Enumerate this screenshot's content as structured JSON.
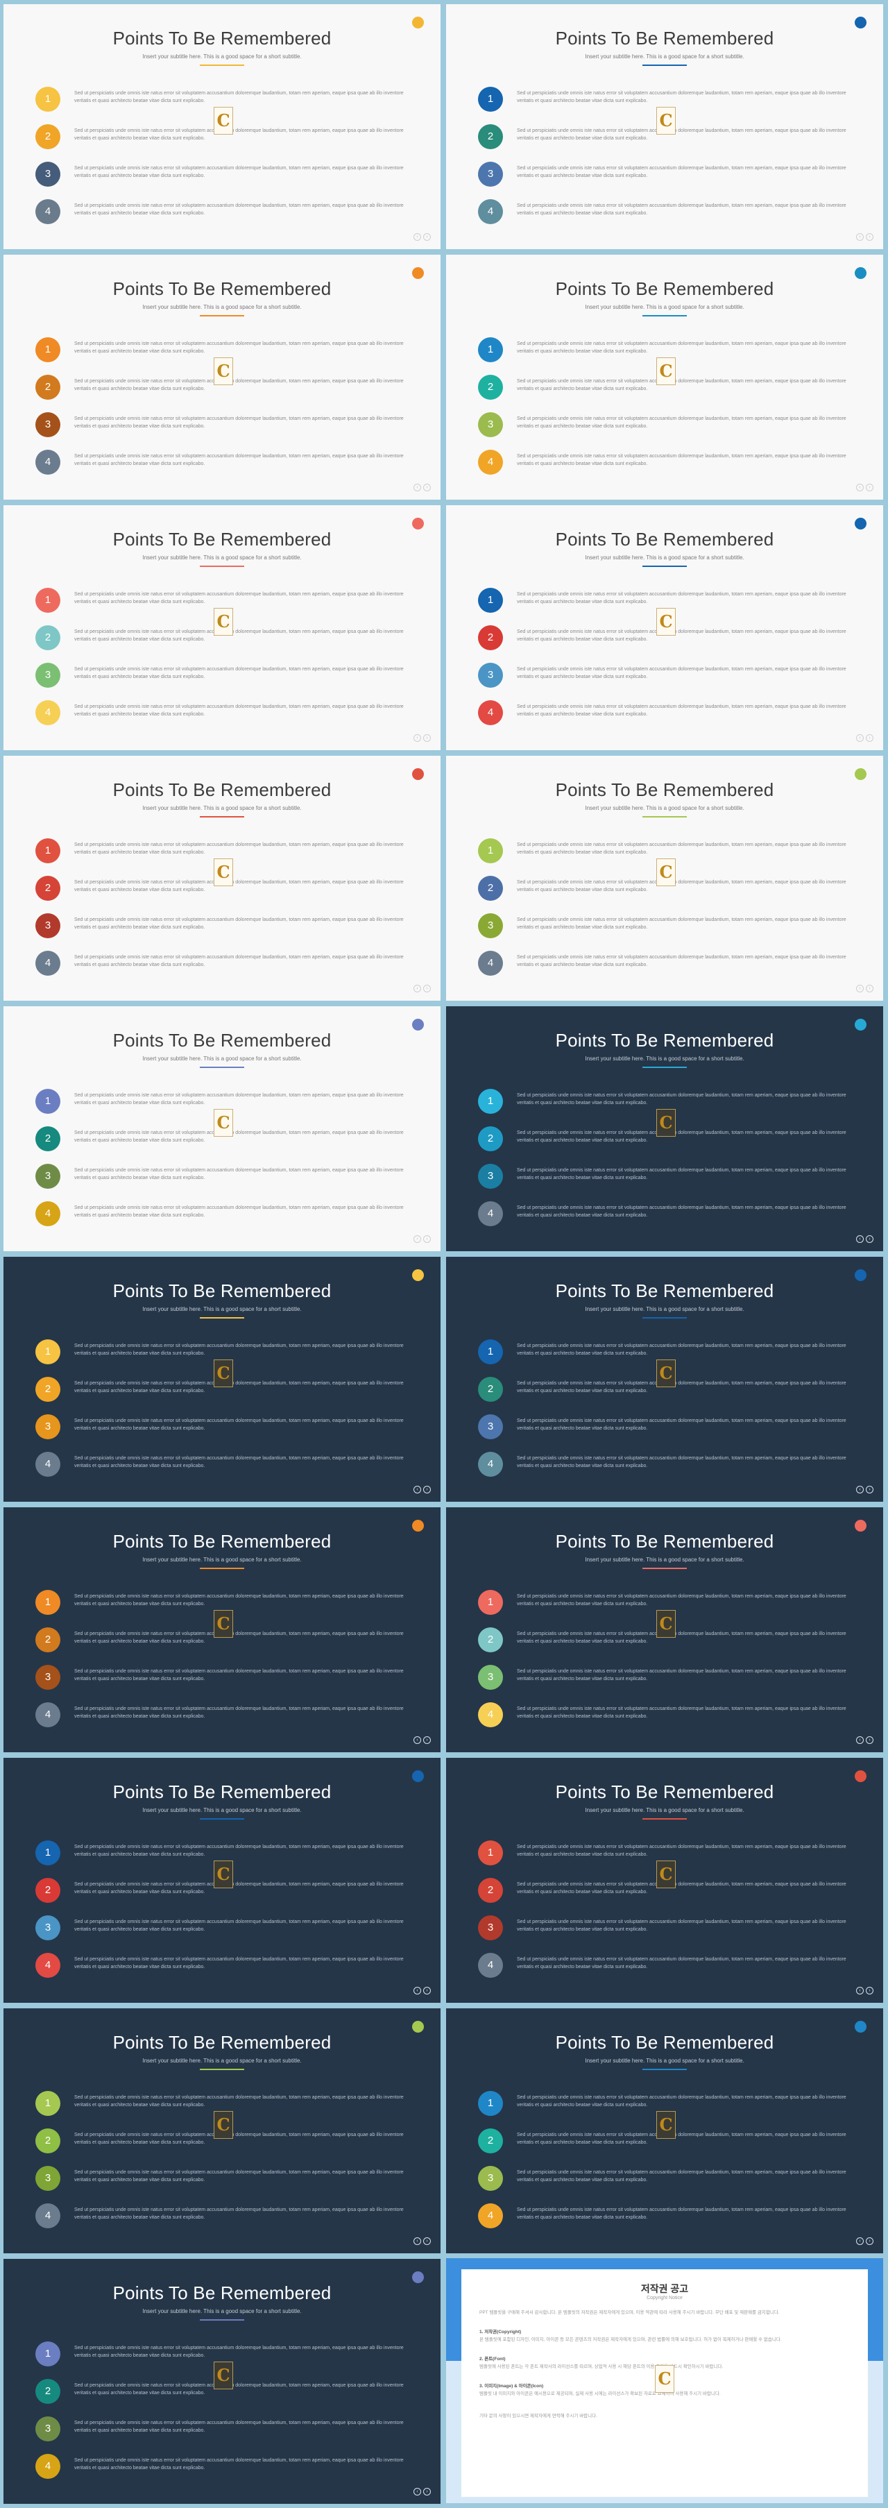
{
  "slide": {
    "title": "Points To Be Remembered",
    "subtitle": "Insert your subtitle here. This is a good space for a short subtitle.",
    "item_text": "Sed ut perspiciatis unde omnis iste natus error sit voluptatem accusantium doloremque laudantium, totam rem aperiam, eaque ipsa quae ab illo inventore veritatis et quasi architecto beatae vitae dicta sunt explicabo.",
    "logo_letter": "C",
    "numbers": [
      "1",
      "2",
      "3",
      "4"
    ],
    "nav_prev": "‹",
    "nav_next": "›"
  },
  "slides": [
    {
      "theme": "light",
      "dot": "#f2b632",
      "line": "#f2b632",
      "circles": [
        "#f6c342",
        "#f0a527",
        "#455c7b",
        "#6a7b8c"
      ]
    },
    {
      "theme": "light",
      "dot": "#1565b0",
      "line": "#1565b0",
      "circles": [
        "#1565b0",
        "#2a8c7a",
        "#4c76ad",
        "#5f8e9e"
      ]
    },
    {
      "theme": "light",
      "dot": "#f08a24",
      "line": "#f08a24",
      "circles": [
        "#f08a24",
        "#d27a1e",
        "#a5511a",
        "#6b7c8e"
      ]
    },
    {
      "theme": "light",
      "dot": "#1a8ec2",
      "line": "#1a8ec2",
      "circles": [
        "#1f87c7",
        "#1eb1a0",
        "#9bbb4f",
        "#f0a527"
      ]
    },
    {
      "theme": "light",
      "dot": "#ee6a5f",
      "line": "#ee6a5f",
      "circles": [
        "#ee6a5f",
        "#7ec7c6",
        "#7bbf73",
        "#f6cf55"
      ]
    },
    {
      "theme": "light",
      "dot": "#1565b0",
      "line": "#1565b0",
      "circles": [
        "#1565b0",
        "#d93a35",
        "#4a95c5",
        "#e24a43"
      ]
    },
    {
      "theme": "light",
      "dot": "#e0523f",
      "line": "#e0523f",
      "circles": [
        "#e0523f",
        "#d54437",
        "#b23a2c",
        "#6b7c8e"
      ]
    },
    {
      "theme": "light",
      "dot": "#a5c850",
      "line": "#a5c850",
      "circles": [
        "#a5c850",
        "#4d6fa8",
        "#8aa934",
        "#6b7c8e"
      ]
    },
    {
      "theme": "light",
      "dot": "#6b7ec2",
      "line": "#6b7ec2",
      "circles": [
        "#6b7ec2",
        "#168a7e",
        "#6f8c47",
        "#d6a415"
      ]
    },
    {
      "theme": "dark",
      "dot": "#27a9d6",
      "line": "#27a9d6",
      "circles": [
        "#29b3db",
        "#1e9bc4",
        "#1a7fa3",
        "#6b7c8e"
      ]
    },
    {
      "theme": "dark",
      "dot": "#f6c342",
      "line": "#f6c342",
      "circles": [
        "#f6c342",
        "#f0a527",
        "#e6951d",
        "#6b7c8e"
      ]
    },
    {
      "theme": "dark",
      "dot": "#1565b0",
      "line": "#1565b0",
      "circles": [
        "#1565b0",
        "#2a8c7a",
        "#4c76ad",
        "#5f8e9e"
      ]
    },
    {
      "theme": "dark",
      "dot": "#f08a24",
      "line": "#f08a24",
      "circles": [
        "#f08a24",
        "#d27a1e",
        "#a5511a",
        "#6b7c8e"
      ]
    },
    {
      "theme": "dark",
      "dot": "#ee6a5f",
      "line": "#ee6a5f",
      "circles": [
        "#ee6a5f",
        "#7ec7c6",
        "#7bbf73",
        "#f6cf55"
      ]
    },
    {
      "theme": "dark",
      "dot": "#1565b0",
      "line": "#1565b0",
      "circles": [
        "#1565b0",
        "#d93a35",
        "#4a95c5",
        "#e24a43"
      ]
    },
    {
      "theme": "dark",
      "dot": "#e0523f",
      "line": "#e0523f",
      "circles": [
        "#e0523f",
        "#d54437",
        "#b23a2c",
        "#6b7c8e"
      ]
    },
    {
      "theme": "dark",
      "dot": "#a5c850",
      "line": "#a5c850",
      "circles": [
        "#a5c850",
        "#8fbf45",
        "#7ea535",
        "#6b7c8e"
      ]
    },
    {
      "theme": "dark",
      "dot": "#1f87c7",
      "line": "#1f87c7",
      "circles": [
        "#1f87c7",
        "#1eb1a0",
        "#9bbb4f",
        "#f0a527"
      ]
    },
    {
      "theme": "dark",
      "dot": "#6b7ec2",
      "line": "#6b7ec2",
      "circles": [
        "#6b7ec2",
        "#168a7e",
        "#6f8c47",
        "#d6a415"
      ]
    }
  ],
  "notice": {
    "title": "저작권 공고",
    "subtitle": "Copyright Notice",
    "para1": "PPT 템플릿을 구매해 주셔서 감사합니다. 본 템플릿의 저작권은 제작자에게 있으며, 이용 약관에 따라 사용해 주시기 바랍니다. 무단 배포 및 재판매를 금지합니다.",
    "h1": "1. 저작권(Copyright)",
    "para2": "본 템플릿에 포함된 디자인, 이미지, 아이콘 등 모든 콘텐츠의 저작권은 제작자에게 있으며, 관련 법률에 의해 보호됩니다. 허가 없이 복제하거나 판매할 수 없습니다.",
    "h2": "2. 폰트(Font)",
    "para3": "템플릿에 사용된 폰트는 각 폰트 제작사의 라이선스를 따르며, 상업적 사용 시 해당 폰트의 이용 조건을 반드시 확인하시기 바랍니다.",
    "h3": "3. 이미지(Image) & 아이콘(Icon)",
    "para4": "템플릿 내 이미지와 아이콘은 예시용으로 제공되며, 실제 사용 시에는 라이선스가 확보된 자료로 교체하여 사용해 주시기 바랍니다.",
    "para5": "기타 문의 사항이 있으시면 제작자에게 연락해 주시기 바랍니다."
  }
}
